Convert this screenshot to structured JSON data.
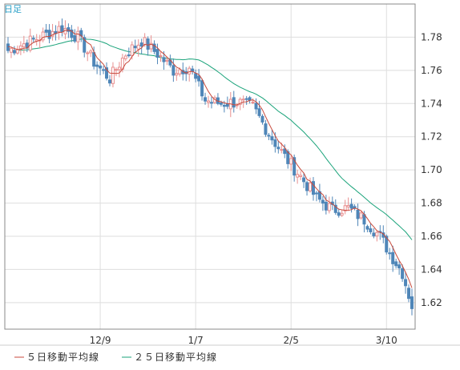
{
  "chart_data": {
    "type": "candlestick",
    "period_label": "日足",
    "x_tick_labels": [
      "12/9",
      "1/7",
      "2/5",
      "3/10"
    ],
    "x_tick_index": [
      29,
      59,
      89,
      119
    ],
    "ylim": [
      1.604,
      1.8
    ],
    "y_ticks": [
      1.62,
      1.64,
      1.66,
      1.68,
      1.7,
      1.72,
      1.74,
      1.76,
      1.78
    ],
    "y_tick_labels": [
      "1.62",
      "1.64",
      "1.66",
      "1.68",
      "1.70",
      "1.72",
      "1.74",
      "1.76",
      "1.78"
    ],
    "colors": {
      "up": "#e88f8f",
      "down": "#4f86b8",
      "ma5": "#c84a3c",
      "ma25": "#1aa37a",
      "grid": "#dedede",
      "frame": "#888888"
    },
    "series": [
      {
        "name": "５日移動平均線",
        "type": "line",
        "color": "#c84a3c"
      },
      {
        "name": "２５日移動平均線",
        "type": "line",
        "color": "#1aa37a"
      }
    ]
  }
}
